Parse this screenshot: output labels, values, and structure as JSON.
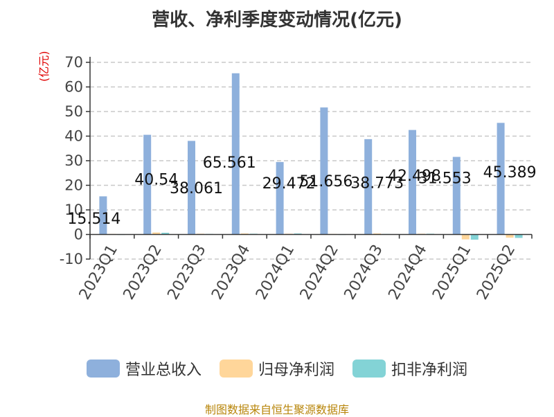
{
  "title": "营收、净利季度变动情况(亿元)",
  "source": "制图数据来自恒生聚源数据库",
  "colors": {
    "revenue": "#8eb0dc",
    "net_profit": "#ffd69a",
    "non_gaap_profit": "#83d3d6"
  },
  "chart_data": {
    "type": "bar",
    "title": "营收、净利季度变动情况(亿元)",
    "ylabel": "(亿元)",
    "xlabel": "",
    "ylim": [
      -10,
      70
    ],
    "yticks": [
      -10,
      0,
      10,
      20,
      30,
      40,
      50,
      60,
      70
    ],
    "grid": true,
    "legend_position": "bottom",
    "categories": [
      "2023Q1",
      "2023Q2",
      "2023Q3",
      "2023Q4",
      "2024Q1",
      "2024Q2",
      "2024Q3",
      "2024Q4",
      "2025Q1",
      "2025Q2"
    ],
    "series": [
      {
        "name": "营业总收入",
        "values": [
          15.514,
          40.54,
          38.061,
          65.561,
          29.472,
          51.656,
          38.773,
          42.498,
          31.553,
          45.389
        ],
        "labels": [
          "15.514",
          "40.54",
          "38.061",
          "65.561",
          "29.472",
          "51.656",
          "38.773",
          "42.498",
          "31.553",
          "45.389"
        ]
      },
      {
        "name": "归母净利润",
        "values": [
          0.2,
          0.8,
          0.3,
          0.4,
          0.3,
          0.2,
          0.4,
          0.3,
          -2.0,
          -1.3
        ]
      },
      {
        "name": "扣非净利润",
        "values": [
          0.1,
          0.7,
          0.2,
          0.3,
          0.4,
          0.1,
          0.2,
          0.3,
          -2.1,
          -1.4
        ]
      }
    ]
  }
}
